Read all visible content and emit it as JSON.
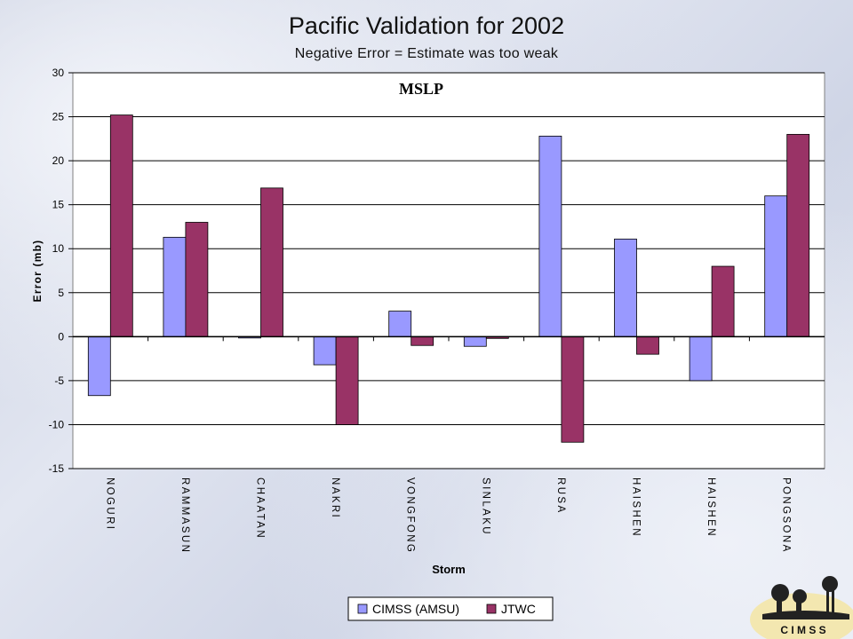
{
  "slide": {
    "title": "Pacific Validation for 2002",
    "subtitle": "Negative Error = Estimate was too weak"
  },
  "logo": {
    "text": "C I M S S"
  },
  "colors": {
    "cimss": "#9999ff",
    "jtwc": "#993366",
    "plot_bg": "#ffffff",
    "grid": "#000000"
  },
  "chart_data": {
    "type": "bar",
    "annotation": "MSLP",
    "xlabel": "Storm",
    "ylabel": "Error (mb)",
    "ylim": [
      -15,
      30
    ],
    "yticks": [
      30,
      25,
      20,
      15,
      10,
      5,
      0,
      -5,
      -10,
      -15
    ],
    "grid": true,
    "legend_position": "bottom",
    "categories": [
      "NOGURI",
      "RAMMASUN",
      "CHAATAN",
      "NAKRI",
      "VONGFONG",
      "SINLAKU",
      "RUSA",
      "HAISHEN",
      "HAISHEN",
      "PONGSONA"
    ],
    "series": [
      {
        "name": "CIMSS (AMSU)",
        "values": [
          -6.7,
          11.3,
          -0.1,
          -3.2,
          2.9,
          -1.1,
          22.8,
          11.1,
          -5.0,
          16.0
        ]
      },
      {
        "name": "JTWC",
        "values": [
          25.2,
          13.0,
          16.9,
          -10.0,
          -1.0,
          -0.2,
          -12.0,
          -2.0,
          8.0,
          23.0
        ]
      }
    ]
  }
}
